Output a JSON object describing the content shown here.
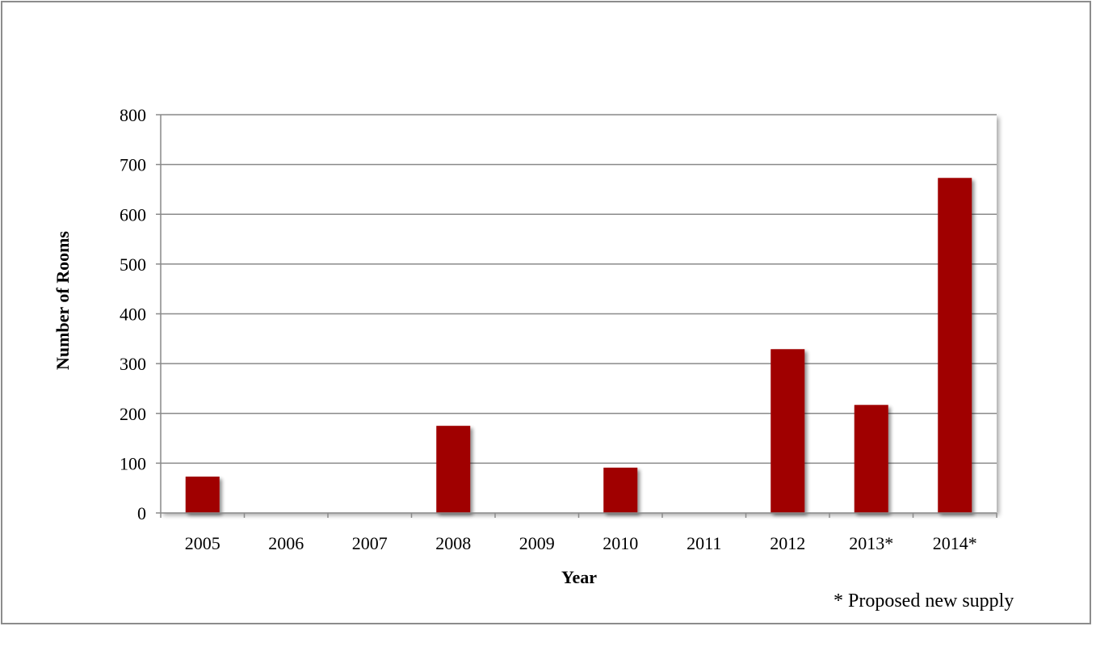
{
  "chart_data": {
    "type": "bar",
    "title": "",
    "xlabel": "Year",
    "ylabel": "Number of Rooms",
    "categories": [
      "2005",
      "2006",
      "2007",
      "2008",
      "2009",
      "2010",
      "2011",
      "2012",
      "2013*",
      "2014*"
    ],
    "values": [
      73,
      0,
      0,
      175,
      0,
      91,
      0,
      329,
      217,
      673
    ],
    "ylim": [
      0,
      800
    ],
    "yticks": [
      0,
      100,
      200,
      300,
      400,
      500,
      600,
      700,
      800
    ],
    "grid": true,
    "legend": "none",
    "bar_color": "#a00000"
  },
  "footnote": "* Proposed new supply"
}
